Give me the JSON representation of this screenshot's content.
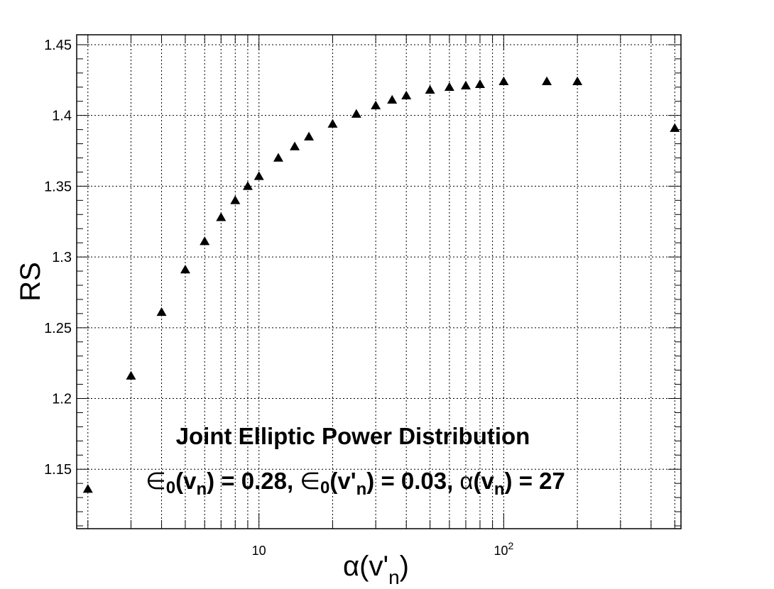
{
  "chart_data": {
    "type": "scatter",
    "x_scale": "log",
    "xlim": [
      1.8,
      530
    ],
    "ylim": [
      1.108,
      1.457
    ],
    "grid": true,
    "marker": "triangle-up",
    "xlabel": "α(v'n)",
    "ylabel": "RS",
    "x_ticks": [
      10,
      100
    ],
    "x_tick_labels": [
      {
        "base": "10",
        "exp": ""
      },
      {
        "base": "10",
        "exp": "2"
      }
    ],
    "y_ticks": [
      1.15,
      1.2,
      1.25,
      1.3,
      1.35,
      1.4,
      1.45
    ],
    "y_tick_labels": [
      "1.15",
      "1.2",
      "1.25",
      "1.3",
      "1.35",
      "1.4",
      "1.45"
    ],
    "annotations": [
      "Joint Elliptic Power Distribution",
      "∈0(vn) = 0.28, ∈0(v'n) = 0.03, α(vn) = 27"
    ],
    "x": [
      2,
      3,
      4,
      5,
      6,
      7,
      8,
      9,
      10,
      12,
      14,
      16,
      20,
      25,
      30,
      35,
      40,
      50,
      60,
      70,
      80,
      100,
      150,
      200,
      500
    ],
    "y": [
      1.136,
      1.216,
      1.261,
      1.291,
      1.311,
      1.328,
      1.34,
      1.35,
      1.357,
      1.37,
      1.378,
      1.385,
      1.394,
      1.401,
      1.407,
      1.411,
      1.414,
      1.418,
      1.42,
      1.421,
      1.422,
      1.424,
      1.424,
      1.424,
      1.391
    ]
  }
}
